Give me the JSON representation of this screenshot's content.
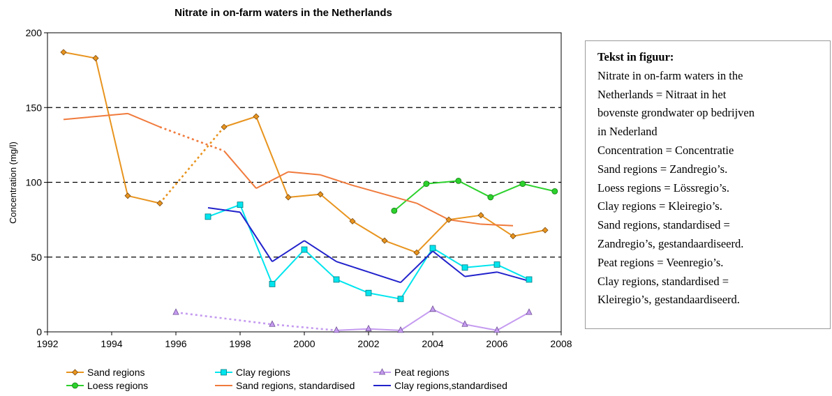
{
  "chart_data": {
    "type": "line",
    "title": "Nitrate in on-farm waters in the Netherlands",
    "xlabel": "",
    "ylabel": "Concentration (mg/l)",
    "xlim": [
      1992,
      2008
    ],
    "ylim": [
      0,
      200
    ],
    "xticks": [
      1992,
      1994,
      1996,
      1998,
      2000,
      2002,
      2004,
      2006,
      2008
    ],
    "yticks": [
      0,
      50,
      100,
      150,
      200
    ],
    "grid": "horizontal dashed at 50, 100, 150",
    "legend_position": "bottom",
    "series": [
      {
        "name": "Sand regions",
        "color": "#E8941E",
        "marker": "diamond",
        "x": [
          1992.5,
          1993.5,
          1994.5,
          1995.5,
          1997.5,
          1998.5,
          1999.5,
          2000.5,
          2001.5,
          2002.5,
          2003.5,
          2004.5,
          2005.5,
          2006.5,
          2007.5
        ],
        "y": [
          187,
          183,
          91,
          86,
          137,
          144,
          90,
          92,
          74,
          61,
          53,
          75,
          78,
          64,
          68
        ],
        "dashed_segments": [
          3
        ]
      },
      {
        "name": "Clay regions",
        "color": "#00E5EE",
        "marker": "square",
        "x": [
          1997,
          1998,
          1999,
          2000,
          2001,
          2002,
          2003,
          2004,
          2005,
          2006,
          2007
        ],
        "y": [
          77,
          85,
          32,
          55,
          35,
          26,
          22,
          56,
          43,
          45,
          35
        ]
      },
      {
        "name": "Peat regions",
        "color": "#C59BF0",
        "marker": "triangle",
        "x": [
          1996,
          1999,
          2001,
          2002,
          2003,
          2004,
          2005,
          2006,
          2007
        ],
        "y": [
          13,
          5,
          1,
          2,
          1,
          15,
          5,
          1,
          13
        ],
        "dashed_segments": [
          0,
          1
        ]
      },
      {
        "name": "Loess regions",
        "color": "#2CD12C",
        "marker": "circle",
        "x": [
          2002.8,
          2003.8,
          2004.8,
          2005.8,
          2006.8,
          2007.8
        ],
        "y": [
          81,
          99,
          101,
          90,
          99,
          94
        ]
      },
      {
        "name": "Sand regions, standardised",
        "color": "#F07A3C",
        "marker": "none",
        "x": [
          1992.5,
          1994.5,
          1995.5,
          1997.5,
          1998.5,
          1999.5,
          2000.5,
          2001.5,
          2002.5,
          2003.5,
          2004.5,
          2005.5,
          2006.5
        ],
        "y": [
          142,
          146,
          137,
          121,
          96,
          107,
          105,
          98,
          92,
          86,
          75,
          72,
          71
        ],
        "dashed_segments": [
          2
        ]
      },
      {
        "name": "Clay regions,standardised",
        "color": "#2222CC",
        "marker": "none",
        "x": [
          1997,
          1998,
          1999,
          2000,
          2001,
          2002,
          2003,
          2004,
          2005,
          2006,
          2007
        ],
        "y": [
          83,
          80,
          47,
          61,
          47,
          40,
          33,
          54,
          37,
          40,
          34
        ]
      }
    ]
  },
  "note": {
    "title": "Tekst in figuur:",
    "lines": [
      "Nitrate in on-farm waters in the",
      "Netherlands = Nitraat in het",
      "bovenste grondwater op bedrijven",
      "in Nederland",
      "Concentration = Concentratie",
      "Sand regions = Zandregio’s.",
      "Loess regions = Lössregio’s.",
      "Clay regions = Kleiregio’s.",
      "Sand regions, standardised =",
      "Zandregio’s, gestandaardiseerd.",
      "Peat regions = Veenregio’s.",
      "Clay regions, standardised =",
      "Kleiregio’s, gestandaardiseerd."
    ]
  }
}
